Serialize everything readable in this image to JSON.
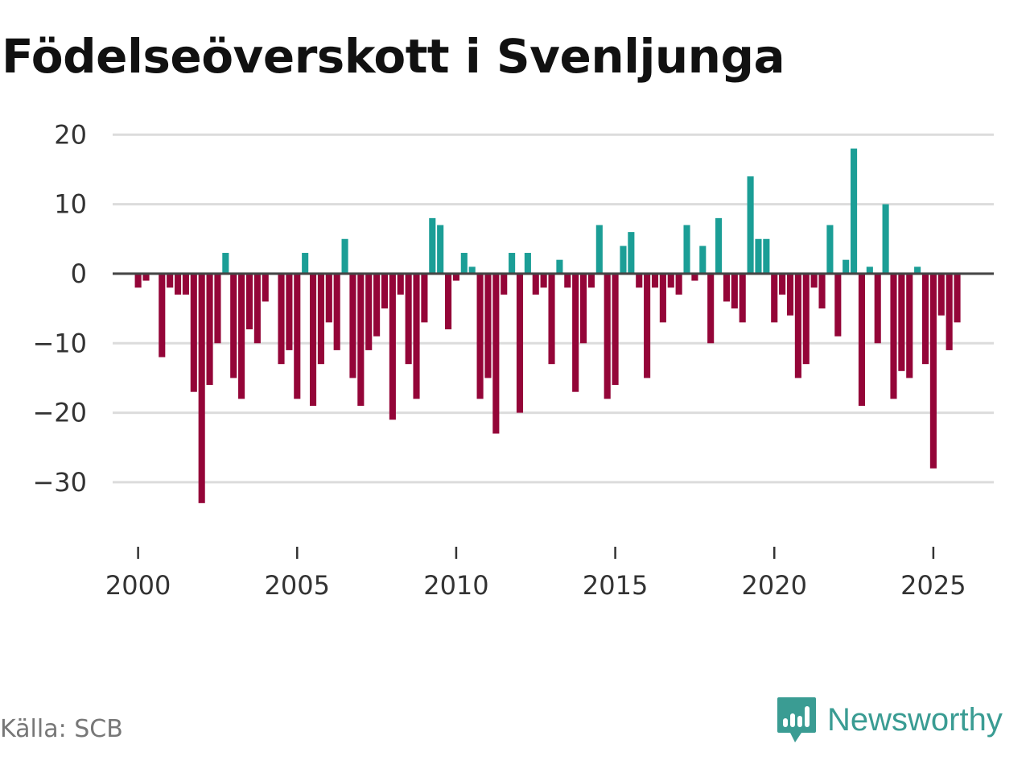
{
  "chart_data": {
    "type": "bar",
    "title": "Födelseöverskott i Svenljunga",
    "xlabel": "",
    "ylabel": "",
    "x_start": 2000.0,
    "x_step": 0.25,
    "values": [
      -2,
      -1,
      null,
      -12,
      -2,
      -3,
      -3,
      -17,
      -33,
      -16,
      -10,
      3,
      -15,
      -18,
      -8,
      -10,
      -4,
      null,
      -13,
      -11,
      -18,
      3,
      -19,
      -13,
      -7,
      -11,
      5,
      -15,
      -19,
      -11,
      -9,
      -5,
      -21,
      -3,
      -13,
      -18,
      -7,
      8,
      7,
      -8,
      -1,
      3,
      1,
      -18,
      -15,
      -23,
      -3,
      3,
      -20,
      3,
      -3,
      -2,
      -13,
      2,
      -2,
      -17,
      -10,
      -2,
      7,
      -18,
      -16,
      4,
      6,
      -2,
      -15,
      -2,
      -7,
      -2,
      -3,
      7,
      -1,
      4,
      -10,
      8,
      -4,
      -5,
      -7,
      14,
      5,
      5,
      -7,
      -3,
      -6,
      -15,
      -13,
      -2,
      -5,
      7,
      -9,
      2,
      18,
      -19,
      1,
      -10,
      10,
      -18,
      -14,
      -15,
      1,
      -13,
      -28,
      -6,
      -11,
      -7
    ],
    "ylim": [
      -38,
      22
    ],
    "yticks": [
      20,
      10,
      0,
      -10,
      -20,
      -30
    ],
    "ytick_labels": [
      "20",
      "10",
      "0",
      "−10",
      "−20",
      "−30"
    ],
    "xlim": [
      1999.2,
      2026.9
    ],
    "xticks": [
      2000,
      2005,
      2010,
      2015,
      2020,
      2025
    ],
    "xtick_labels": [
      "2000",
      "2005",
      "2010",
      "2015",
      "2020",
      "2025"
    ],
    "grid": true,
    "colors": {
      "positive": "#1b9e96",
      "negative": "#940538",
      "grid": "#dcdcdc",
      "zero": "#444444"
    }
  },
  "footer": {
    "source": "Källa: SCB",
    "brand": "Newsworthy",
    "brand_color": "#3a9c93",
    "brand_icon": "newsworthy-logo-icon"
  }
}
